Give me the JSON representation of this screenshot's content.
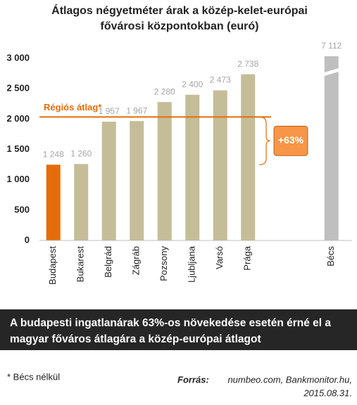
{
  "chart_data": {
    "type": "bar",
    "title": [
      "Átlagos négyetméter árak a közép-kelet-európai",
      "fővárosi központokban (euró)"
    ],
    "categories": [
      "Budapest",
      "Bukarest",
      "Belgrád",
      "Zágráb",
      "Pozsony",
      "Ljubljana",
      "Varsó",
      "Prága",
      null,
      null,
      "Bécs"
    ],
    "values": [
      1248,
      1260,
      1957,
      1967,
      2280,
      2400,
      2473,
      2738,
      null,
      null,
      7112
    ],
    "value_labels": [
      "1 248",
      "1 260",
      "1 957",
      "1 967",
      "2 280",
      "2 400",
      "2 473",
      "2 738",
      null,
      null,
      "7 112"
    ],
    "colors": [
      "#e46c0a",
      "#c4bd97",
      "#c4bd97",
      "#c4bd97",
      "#c4bd97",
      "#c4bd97",
      "#c4bd97",
      "#c4bd97",
      null,
      null,
      "#bfbfbf"
    ],
    "ylim": [
      0,
      3000
    ],
    "yticks": [
      0,
      500,
      {
        "value": 1000,
        "label": "1 000"
      },
      {
        "value": 1500,
        "label": "1 500"
      },
      {
        "value": 2000,
        "label": "2 000"
      },
      {
        "value": 2500,
        "label": "2 500"
      },
      {
        "value": 3000,
        "label": "3 000"
      }
    ],
    "grid": false,
    "axis_break": true,
    "regional_average": {
      "label": "Régiós átlag*",
      "value": 2034,
      "color": "#e46c0a"
    },
    "annotation": "+63%"
  },
  "banner": [
    "A budapesti ingatlanárak 63%-os növekedése esetén érné el a",
    "magyar főváros átlagára a közép-európai átlagot"
  ],
  "footnote": "* Bécs nélkül",
  "source": {
    "label": "Forrás:",
    "lines": [
      "numbeo.com, Bankmonitor.hu,",
      "2015.08.31."
    ]
  }
}
